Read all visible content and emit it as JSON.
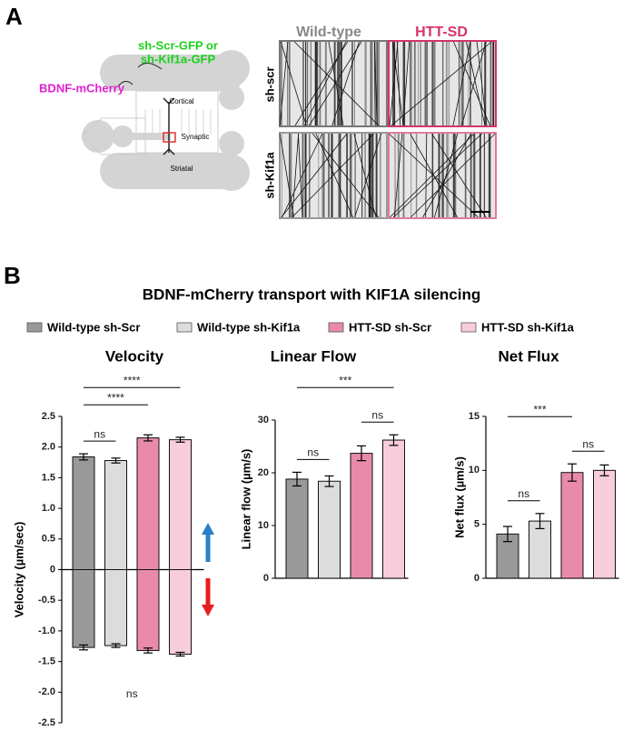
{
  "panel_a": {
    "label": "A",
    "green_label_lines": [
      "sh-Scr-GFP or",
      "sh-Kif1a-GFP"
    ],
    "magenta_label": "BDNF-mCherry",
    "regions": [
      "Cortical",
      "Synaptic",
      "Striatal"
    ],
    "columns": [
      "Wild-type",
      "HTT-SD"
    ],
    "rows": [
      "sh-scr",
      "sh-Kif1a"
    ]
  },
  "panel_b": {
    "label": "B",
    "title": "BDNF-mCherry transport with KIF1A silencing",
    "legend": [
      {
        "name": "Wild-type sh-Scr",
        "color": "#999999"
      },
      {
        "name": "Wild-type sh-Kif1a",
        "color": "#dcdcdc"
      },
      {
        "name": "HTT-SD sh-Scr",
        "color": "#e98aab"
      },
      {
        "name": "HTT-SD sh-Kif1a",
        "color": "#f8cddb"
      }
    ]
  },
  "chart_data": [
    {
      "type": "bar",
      "title": "Velocity",
      "ylabel": "Velocity (µm/sec)",
      "ylim": [
        -2.5,
        2.5
      ],
      "yticks": [
        2.5,
        {
          "value": 2,
          "label": "2.0"
        },
        1.5,
        {
          "value": 1,
          "label": "1.0"
        },
        0.5,
        0,
        -0.5,
        {
          "value": -1,
          "label": "-1.0"
        },
        -1.5,
        {
          "value": -2,
          "label": "-2.0"
        },
        -2.5
      ],
      "series": [
        {
          "values": [
            1.84,
            1.78,
            2.15,
            2.12
          ],
          "errors": [
            0.05,
            0.04,
            0.05,
            0.04
          ]
        },
        {
          "values": [
            -1.27,
            -1.24,
            -1.32,
            -1.38
          ],
          "errors": [
            0.04,
            0.03,
            0.04,
            0.03
          ]
        }
      ],
      "annotations": [
        {
          "text": "ns",
          "from": 0,
          "to": 1
        },
        {
          "text": "****",
          "from": 0,
          "to": 2
        },
        {
          "text": "****",
          "from": 0,
          "to": 3
        }
      ],
      "bottom_annotation": "ns"
    },
    {
      "type": "bar",
      "title": "Linear Flow",
      "ylabel": "Linear flow (µm/s)",
      "ylim": [
        0,
        30
      ],
      "yticks": [
        0,
        10,
        20,
        30
      ],
      "series": [
        {
          "values": [
            18.8,
            18.4,
            23.7,
            26.2
          ],
          "errors": [
            1.3,
            1.0,
            1.4,
            1.0
          ]
        }
      ],
      "annotations": [
        {
          "text": "ns",
          "from": 0,
          "to": 1
        },
        {
          "text": "ns",
          "from": 2,
          "to": 3
        },
        {
          "text": "***",
          "from": 0,
          "to": 3
        }
      ]
    },
    {
      "type": "bar",
      "title": "Net Flux",
      "ylabel": "Net flux (µm/s)",
      "ylim": [
        0,
        15
      ],
      "yticks": [
        0,
        5,
        10,
        15
      ],
      "series": [
        {
          "values": [
            4.1,
            5.3,
            9.8,
            10.0
          ],
          "errors": [
            0.7,
            0.7,
            0.8,
            0.5
          ]
        }
      ],
      "annotations": [
        {
          "text": "ns",
          "from": 0,
          "to": 1
        },
        {
          "text": "ns",
          "from": 2,
          "to": 3
        },
        {
          "text": "***",
          "from": 0,
          "to": 2
        }
      ]
    }
  ]
}
